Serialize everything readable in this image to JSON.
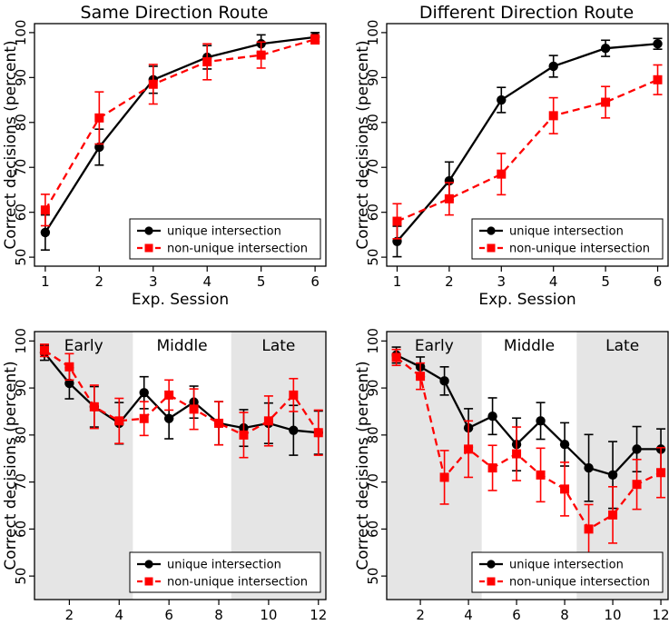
{
  "colors": {
    "unique": "#000000",
    "nonunique": "#ff0000",
    "shade": "#e5e5e5"
  },
  "chart_data": [
    {
      "type": "line",
      "title": "Same Direction Route",
      "xlabel": "Exp. Session",
      "ylabel": "Correct decisions (percent)",
      "xlim": [
        0.8,
        6.2
      ],
      "ylim": [
        48,
        102
      ],
      "xticks": [
        1,
        2,
        3,
        4,
        5,
        6
      ],
      "yticks": [
        50,
        60,
        70,
        80,
        90,
        100
      ],
      "grid": false,
      "legend_position": "bottom-right",
      "x": [
        1,
        2,
        3,
        4,
        5,
        6
      ],
      "series": [
        {
          "name": "unique intersection",
          "style": "solid-circle",
          "values": [
            55.5,
            74.5,
            89.5,
            94.5,
            97.5,
            99
          ],
          "errors": [
            3.9,
            4.0,
            3.0,
            2.6,
            2.0,
            1.0
          ]
        },
        {
          "name": "non-unique intersection",
          "style": "dashed-square",
          "values": [
            60.5,
            81,
            88.5,
            93.5,
            95,
            98.5
          ],
          "errors": [
            3.5,
            5.8,
            4.4,
            4.0,
            2.9,
            1.0
          ]
        }
      ]
    },
    {
      "type": "line",
      "title": "Different Direction Route",
      "xlabel": "Exp. Session",
      "ylabel": "Correct decisions (percent)",
      "xlim": [
        0.8,
        6.2
      ],
      "ylim": [
        48,
        102
      ],
      "xticks": [
        1,
        2,
        3,
        4,
        5,
        6
      ],
      "yticks": [
        50,
        60,
        70,
        80,
        90,
        100
      ],
      "grid": false,
      "legend_position": "bottom-right",
      "x": [
        1,
        2,
        3,
        4,
        5,
        6
      ],
      "series": [
        {
          "name": "unique intersection",
          "style": "solid-circle",
          "values": [
            53.5,
            67,
            85,
            92.5,
            96.5,
            97.5
          ],
          "errors": [
            3.4,
            4.2,
            2.8,
            2.4,
            1.8,
            1.2
          ]
        },
        {
          "name": "non-unique intersection",
          "style": "dashed-square",
          "values": [
            58,
            63,
            68.5,
            81.5,
            84.5,
            89.5
          ],
          "errors": [
            3.9,
            3.6,
            4.6,
            4.0,
            3.5,
            3.3
          ]
        }
      ]
    },
    {
      "type": "line",
      "title": "",
      "xlabel": "Serial Position",
      "ylabel": "Correct decisions (percent)",
      "xlim": [
        0.6,
        12.3
      ],
      "ylim": [
        45,
        102
      ],
      "xticks": [
        2,
        4,
        6,
        8,
        10,
        12
      ],
      "yticks": [
        50,
        60,
        70,
        80,
        90,
        100
      ],
      "grid": false,
      "legend_position": "bottom-right",
      "regions": [
        {
          "label": "Early",
          "range": [
            0.6,
            4.55
          ],
          "shaded": true
        },
        {
          "label": "Middle",
          "range": [
            4.55,
            8.5
          ],
          "shaded": false
        },
        {
          "label": "Late",
          "range": [
            8.5,
            12.3
          ],
          "shaded": true
        }
      ],
      "x": [
        1,
        2,
        3,
        4,
        5,
        6,
        7,
        8,
        9,
        10,
        11,
        12
      ],
      "series": [
        {
          "name": "unique intersection",
          "style": "solid-circle",
          "values": [
            97.5,
            91,
            86,
            82.5,
            89,
            83.5,
            87,
            82.5,
            81.5,
            82.5,
            81,
            80.5
          ],
          "errors": [
            1.6,
            3.3,
            4.3,
            4.4,
            3.4,
            4.3,
            3.4,
            4.6,
            3.9,
            4.3,
            5.3,
            4.6
          ]
        },
        {
          "name": "non-unique intersection",
          "style": "dashed-square",
          "values": [
            98,
            94.5,
            86,
            83,
            83.5,
            88.5,
            85.5,
            82.5,
            80,
            83,
            88.5,
            80.5
          ],
          "errors": [
            1.3,
            2.8,
            4.6,
            4.8,
            3.6,
            3.2,
            4.3,
            4.6,
            4.8,
            5.3,
            3.5,
            4.8
          ]
        }
      ]
    },
    {
      "type": "line",
      "title": "",
      "xlabel": "Serial Position",
      "ylabel": "Correct decisions (percent)",
      "xlim": [
        0.6,
        12.3
      ],
      "ylim": [
        45,
        102
      ],
      "xticks": [
        2,
        4,
        6,
        8,
        10,
        12
      ],
      "yticks": [
        50,
        60,
        70,
        80,
        90,
        100
      ],
      "grid": false,
      "legend_position": "bottom-right",
      "regions": [
        {
          "label": "Early",
          "range": [
            0.6,
            4.55
          ],
          "shaded": true
        },
        {
          "label": "Middle",
          "range": [
            4.55,
            8.5
          ],
          "shaded": false
        },
        {
          "label": "Late",
          "range": [
            8.5,
            12.3
          ],
          "shaded": true
        }
      ],
      "x": [
        1,
        2,
        3,
        4,
        5,
        6,
        7,
        8,
        9,
        10,
        11,
        12
      ],
      "series": [
        {
          "name": "unique intersection",
          "style": "solid-circle",
          "values": [
            97,
            94.5,
            91.5,
            81.5,
            84,
            78,
            83,
            78,
            73,
            71.5,
            77,
            77
          ],
          "errors": [
            1.7,
            2.1,
            3.0,
            4.1,
            3.9,
            5.6,
            3.9,
            4.6,
            7.1,
            7.1,
            4.8,
            4.3
          ]
        },
        {
          "name": "non-unique intersection",
          "style": "dashed-square",
          "values": [
            96.5,
            92.5,
            71,
            77,
            73,
            76,
            71.5,
            68.5,
            60,
            63,
            69.5,
            72
          ],
          "errors": [
            1.7,
            2.8,
            5.7,
            6.0,
            4.8,
            5.7,
            5.7,
            5.7,
            5.2,
            6.0,
            5.3,
            5.3
          ]
        }
      ]
    }
  ]
}
